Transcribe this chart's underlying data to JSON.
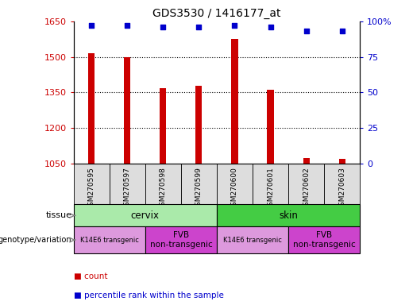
{
  "title": "GDS3530 / 1416177_at",
  "samples": [
    "GSM270595",
    "GSM270597",
    "GSM270598",
    "GSM270599",
    "GSM270600",
    "GSM270601",
    "GSM270602",
    "GSM270603"
  ],
  "counts": [
    1515,
    1500,
    1370,
    1380,
    1575,
    1360,
    1075,
    1070
  ],
  "percentile_ranks": [
    97,
    97,
    96,
    96,
    97,
    96,
    93,
    93
  ],
  "ylim_left": [
    1050,
    1650
  ],
  "ylim_right": [
    0,
    100
  ],
  "yticks_left": [
    1050,
    1200,
    1350,
    1500,
    1650
  ],
  "yticks_right": [
    0,
    25,
    50,
    75,
    100
  ],
  "bar_color": "#cc0000",
  "dot_color": "#0000cc",
  "tissue_cervix_color": "#aaeaaa",
  "tissue_skin_color": "#44cc44",
  "genotype_transgenic_color": "#dd99dd",
  "genotype_fvb_color": "#cc44cc",
  "xlabel_bg_color": "#dddddd",
  "tissue_groups": [
    {
      "label": "cervix",
      "start": 0,
      "end": 4
    },
    {
      "label": "skin",
      "start": 4,
      "end": 8
    }
  ],
  "genotype_groups": [
    {
      "label": "K14E6 transgenic",
      "start": 0,
      "end": 2,
      "fontsize": 6
    },
    {
      "label": "FVB\nnon-transgenic",
      "start": 2,
      "end": 4,
      "fontsize": 7.5
    },
    {
      "label": "K14E6 transgenic",
      "start": 4,
      "end": 6,
      "fontsize": 6
    },
    {
      "label": "FVB\nnon-transgenic",
      "start": 6,
      "end": 8,
      "fontsize": 7.5
    }
  ],
  "legend_items": [
    {
      "label": "count",
      "color": "#cc0000"
    },
    {
      "label": "percentile rank within the sample",
      "color": "#0000cc"
    }
  ],
  "row_labels": [
    "tissue",
    "genotype/variation"
  ]
}
